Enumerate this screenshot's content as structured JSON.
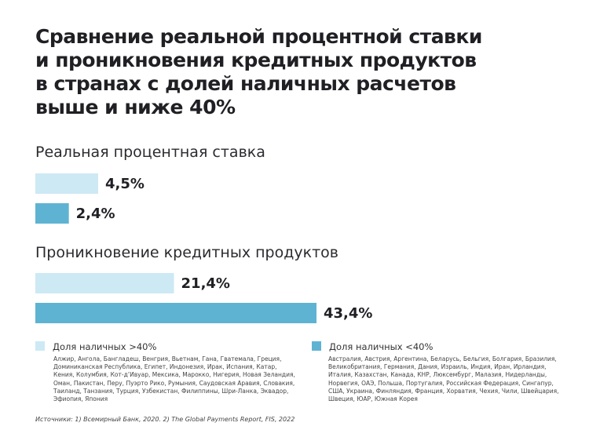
{
  "title_lines": [
    "Сравнение реальной процентной ставки",
    "и проникновения кредитных продуктов",
    "в странах с долей наличных расчетов",
    "выше и ниже 40%"
  ],
  "colors": {
    "light": "#cde9f4",
    "dark": "#5fb3d2"
  },
  "chart_data": [
    {
      "type": "bar",
      "title": "Реальная процентная ставка",
      "categories": [
        "Доля наличных >40%",
        "Доля наличных <40%"
      ],
      "values": [
        4.5,
        2.4
      ],
      "value_labels": [
        "4,5%",
        "2,4%"
      ],
      "unit": "%"
    },
    {
      "type": "bar",
      "title": "Проникновение кредитных продуктов",
      "categories": [
        "Доля наличных >40%",
        "Доля наличных <40%"
      ],
      "values": [
        21.4,
        43.4
      ],
      "value_labels": [
        "21,4%",
        "43,4%"
      ],
      "unit": "%"
    }
  ],
  "legend": [
    {
      "label": "Доля наличных >40%",
      "color": "#cde9f4",
      "countries": "Алжир, Ангола, Бангладеш, Венгрия, Вьетнам, Гана, Гватемала, Греция, Доминиканская Республика, Египет, Индонезия, Ирак, Испания, Катар, Кения, Колумбия, Кот-д’Ивуар, Мексика, Марокко, Нигерия, Новая Зеландия, Оман, Пакистан, Перу, Пуэрто Рико, Румыния, Саудовская Аравия, Словакия, Таиланд, Танзания, Турция, Узбекистан, Филиппины, Шри-Ланка, Эквадор, Эфиопия, Япония"
    },
    {
      "label": "Доля наличных <40%",
      "color": "#5fb3d2",
      "countries": "Австралия, Австрия, Аргентина, Беларусь, Бельгия, Болгария, Бразилия, Великобритания, Германия, Дания, Израиль, Индия, Иран, Ирландия, Италия, Казахстан, Канада, КНР, Люксембург, Малазия, Нидерланды, Норвегия, ОАЭ, Польша, Португалия, Российская Федерация, Сингапур, США, Украина, Финляндия, Франция, Хорватия, Чехия, Чили, Швейцария, Швеция, ЮАР, Южная Корея"
    }
  ],
  "source": "Источники: 1) Всемирный Банк, 2020. 2) The Global Payments Report, FIS, 2022"
}
